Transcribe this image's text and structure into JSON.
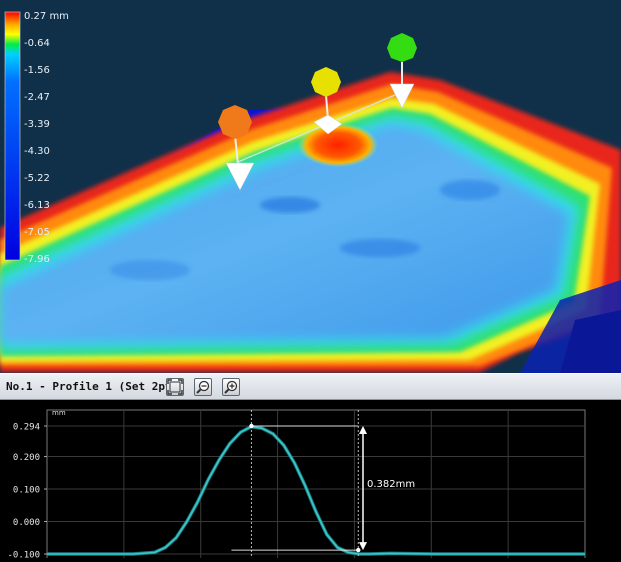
{
  "colorbar": {
    "unit": "mm",
    "top_label": "0.27 mm",
    "labels": [
      "-0.64",
      "-1.56",
      "-2.47",
      "-3.39",
      "-4.30",
      "-5.22",
      "-6.13",
      "-7.05",
      "-7.96"
    ]
  },
  "markers": [
    {
      "name": "marker-orange",
      "color": "#f07a1a"
    },
    {
      "name": "marker-yellow",
      "color": "#e8e000"
    },
    {
      "name": "marker-green",
      "color": "#33dd11"
    }
  ],
  "profile_panel": {
    "title": "No.1 - Profile 1 (Set 2pt.)",
    "buttons": [
      "fit-icon",
      "zoom-out-icon",
      "zoom-in-icon"
    ]
  },
  "chart_data": {
    "type": "line",
    "ylabel": "mm",
    "y_ticks": [
      "0.294",
      "0.200",
      "0.100",
      "0.000",
      "-0.100"
    ],
    "ylim": [
      -0.1,
      0.294
    ],
    "grid": true,
    "series": [
      {
        "color": "#3cc8c8",
        "x": [
          0,
          40,
          80,
          100,
          110,
          120,
          130,
          140,
          150,
          160,
          170,
          180,
          190,
          200,
          210,
          220,
          230,
          240,
          250,
          260,
          270,
          280,
          290,
          300,
          320,
          360,
          400,
          450,
          500
        ],
        "y": [
          -0.1,
          -0.1,
          -0.1,
          -0.095,
          -0.08,
          -0.05,
          0.0,
          0.06,
          0.13,
          0.19,
          0.24,
          0.275,
          0.292,
          0.287,
          0.27,
          0.235,
          0.18,
          0.11,
          0.03,
          -0.04,
          -0.08,
          -0.095,
          -0.1,
          -0.1,
          -0.098,
          -0.1,
          -0.1,
          -0.1,
          -0.1
        ]
      }
    ],
    "annotations": [
      {
        "text": "0.382mm",
        "from": 0.294,
        "to": -0.088
      }
    ]
  }
}
